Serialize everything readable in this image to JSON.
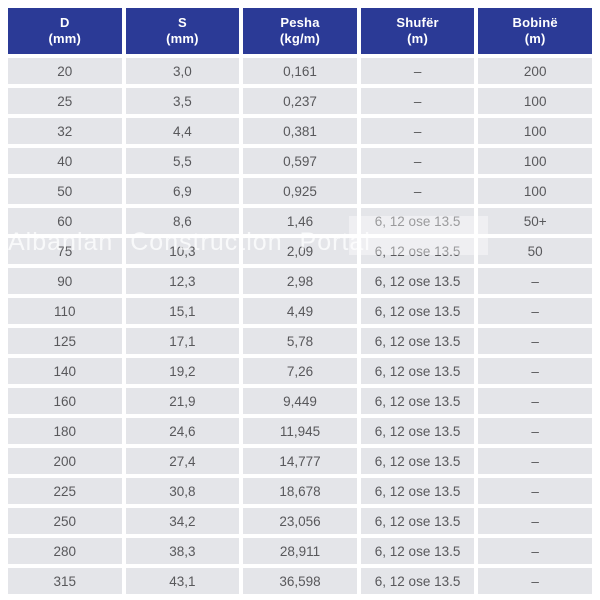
{
  "colors": {
    "header_bg": "#2b3a96",
    "header_text": "#ffffff",
    "row_bg": "#e4e5e9",
    "cell_text": "#58585b",
    "watermark": "rgba(255,255,255,0.75)"
  },
  "watermark": {
    "text": "Albanian Construction Portal"
  },
  "chart_data": {
    "type": "table",
    "columns": [
      {
        "label": "D",
        "unit": "(mm)"
      },
      {
        "label": "S",
        "unit": "(mm)"
      },
      {
        "label": "Pesha",
        "unit": "(kg/m)"
      },
      {
        "label": "Shufër",
        "unit": "(m)"
      },
      {
        "label": "Bobinë",
        "unit": "(m)"
      }
    ],
    "rows": [
      [
        "20",
        "3,0",
        "0,161",
        "–",
        "200"
      ],
      [
        "25",
        "3,5",
        "0,237",
        "–",
        "100"
      ],
      [
        "32",
        "4,4",
        "0,381",
        "–",
        "100"
      ],
      [
        "40",
        "5,5",
        "0,597",
        "–",
        "100"
      ],
      [
        "50",
        "6,9",
        "0,925",
        "–",
        "100"
      ],
      [
        "60",
        "8,6",
        "1,46",
        "6, 12 ose 13.5",
        "50+"
      ],
      [
        "75",
        "10,3",
        "2,09",
        "6, 12 ose 13.5",
        "50"
      ],
      [
        "90",
        "12,3",
        "2,98",
        "6, 12 ose 13.5",
        "–"
      ],
      [
        "110",
        "15,1",
        "4,49",
        "6, 12 ose 13.5",
        "–"
      ],
      [
        "125",
        "17,1",
        "5,78",
        "6, 12 ose 13.5",
        "–"
      ],
      [
        "140",
        "19,2",
        "7,26",
        "6, 12 ose 13.5",
        "–"
      ],
      [
        "160",
        "21,9",
        "9,449",
        "6, 12 ose 13.5",
        "–"
      ],
      [
        "180",
        "24,6",
        "11,945",
        "6, 12 ose 13.5",
        "–"
      ],
      [
        "200",
        "27,4",
        "14,777",
        "6, 12 ose 13.5",
        "–"
      ],
      [
        "225",
        "30,8",
        "18,678",
        "6, 12 ose 13.5",
        "–"
      ],
      [
        "250",
        "34,2",
        "23,056",
        "6, 12 ose 13.5",
        "–"
      ],
      [
        "280",
        "38,3",
        "28,911",
        "6, 12 ose 13.5",
        "–"
      ],
      [
        "315",
        "43,1",
        "36,598",
        "6, 12 ose 13.5",
        "–"
      ]
    ]
  }
}
